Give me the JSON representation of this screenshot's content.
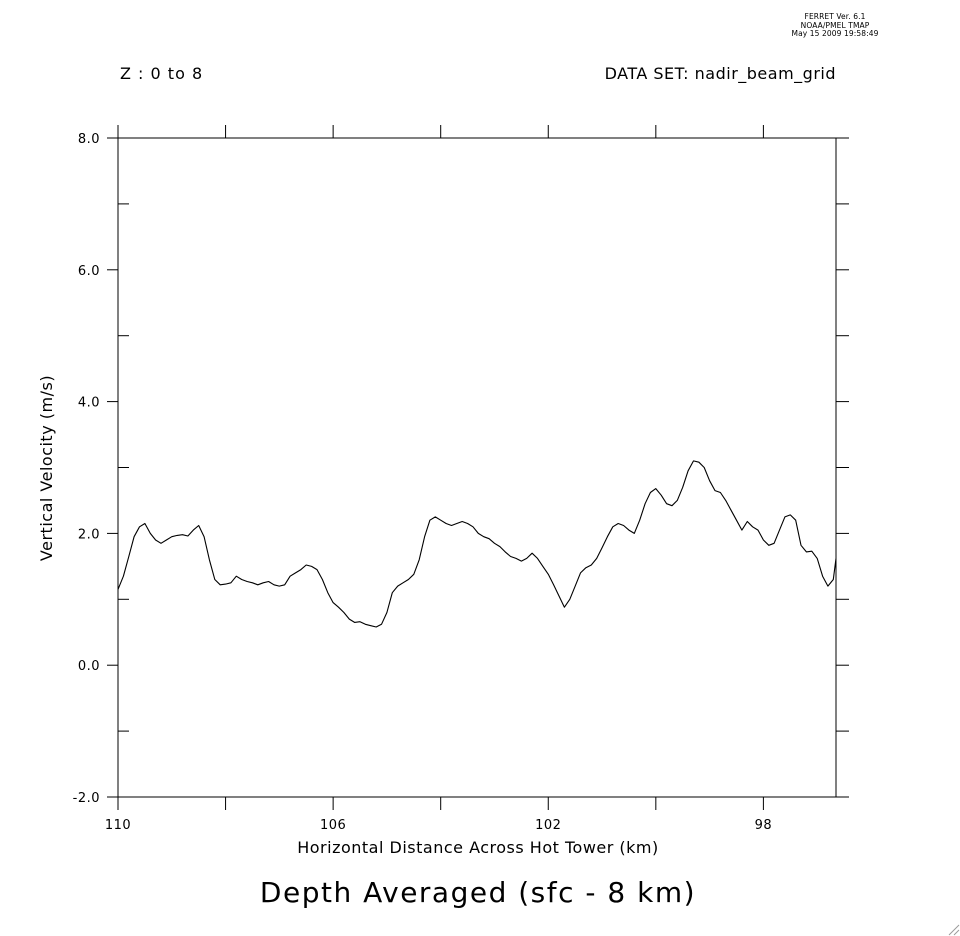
{
  "stamp": {
    "line1": "FERRET Ver. 6.1",
    "line2": "NOAA/PMEL TMAP",
    "line3": "May 15 2009 19:58:49"
  },
  "header": {
    "z_range": "Z : 0 to 8",
    "dataset": "DATA SET: nadir_beam_grid"
  },
  "chart_data": {
    "type": "line",
    "title": "Depth Averaged (sfc - 8 km)",
    "xlabel": "Horizontal Distance Across Hot Tower (km)",
    "ylabel": "Vertical Velocity (m/s)",
    "xlim": [
      110,
      96.65
    ],
    "ylim": [
      -2.0,
      8.0
    ],
    "x_reversed": true,
    "xticks": [
      110,
      106,
      102,
      98
    ],
    "xtick_labels": [
      "110",
      "106",
      "102",
      "98"
    ],
    "yticks": [
      -2.0,
      0.0,
      2.0,
      4.0,
      6.0,
      8.0
    ],
    "ytick_labels": [
      "-2.0",
      "0.0",
      "2.0",
      "4.0",
      "6.0",
      "8.0"
    ],
    "grid": false,
    "series": [
      {
        "x": [
          110.0,
          109.9,
          109.8,
          109.7,
          109.6,
          109.5,
          109.4,
          109.3,
          109.2,
          109.1,
          109.0,
          108.9,
          108.8,
          108.7,
          108.6,
          108.5,
          108.4,
          108.3,
          108.2,
          108.1,
          108.0,
          107.9,
          107.8,
          107.7,
          107.6,
          107.5,
          107.4,
          107.3,
          107.2,
          107.1,
          107.0,
          106.9,
          106.8,
          106.7,
          106.6,
          106.5,
          106.4,
          106.3,
          106.2,
          106.1,
          106.0,
          105.9,
          105.8,
          105.7,
          105.6,
          105.5,
          105.4,
          105.3,
          105.2,
          105.1,
          105.0,
          104.9,
          104.8,
          104.7,
          104.6,
          104.5,
          104.4,
          104.3,
          104.2,
          104.1,
          104.0,
          103.9,
          103.8,
          103.7,
          103.6,
          103.5,
          103.4,
          103.3,
          103.2,
          103.1,
          103.0,
          102.9,
          102.8,
          102.7,
          102.6,
          102.5,
          102.4,
          102.3,
          102.2,
          102.1,
          102.0,
          101.9,
          101.8,
          101.7,
          101.6,
          101.5,
          101.4,
          101.3,
          101.2,
          101.1,
          101.0,
          100.9,
          100.8,
          100.7,
          100.6,
          100.5,
          100.4,
          100.3,
          100.2,
          100.1,
          100.0,
          99.9,
          99.8,
          99.7,
          99.6,
          99.5,
          99.4,
          99.3,
          99.2,
          99.1,
          99.0,
          98.9,
          98.8,
          98.7,
          98.6,
          98.5,
          98.4,
          98.3,
          98.2,
          98.1,
          98.0,
          97.9,
          97.8,
          97.7,
          97.6,
          97.5,
          97.4,
          97.3,
          97.2,
          97.1,
          97.0,
          96.9,
          96.8,
          96.7,
          96.65
        ],
        "values": [
          1.15,
          1.35,
          1.65,
          1.95,
          2.1,
          2.15,
          2.0,
          1.9,
          1.85,
          1.9,
          1.95,
          1.97,
          1.98,
          1.96,
          2.05,
          2.12,
          1.95,
          1.6,
          1.3,
          1.22,
          1.23,
          1.25,
          1.35,
          1.3,
          1.27,
          1.25,
          1.22,
          1.25,
          1.27,
          1.22,
          1.2,
          1.22,
          1.35,
          1.4,
          1.45,
          1.52,
          1.5,
          1.45,
          1.3,
          1.1,
          0.95,
          0.88,
          0.8,
          0.7,
          0.65,
          0.66,
          0.62,
          0.6,
          0.58,
          0.62,
          0.8,
          1.1,
          1.2,
          1.25,
          1.3,
          1.38,
          1.6,
          1.95,
          2.2,
          2.25,
          2.2,
          2.15,
          2.12,
          2.15,
          2.18,
          2.15,
          2.1,
          2.0,
          1.95,
          1.92,
          1.85,
          1.8,
          1.72,
          1.65,
          1.62,
          1.58,
          1.62,
          1.7,
          1.62,
          1.5,
          1.38,
          1.22,
          1.05,
          0.88,
          1.0,
          1.2,
          1.4,
          1.48,
          1.52,
          1.62,
          1.78,
          1.95,
          2.1,
          2.15,
          2.12,
          2.05,
          2.0,
          2.2,
          2.45,
          2.62,
          2.68,
          2.58,
          2.45,
          2.42,
          2.5,
          2.7,
          2.95,
          3.1,
          3.08,
          3.0,
          2.8,
          2.65,
          2.62,
          2.5,
          2.35,
          2.2,
          2.05,
          2.18,
          2.1,
          2.05,
          1.9,
          1.82,
          1.85,
          2.05,
          2.25,
          2.28,
          2.2,
          1.82,
          1.72,
          1.73,
          1.62,
          1.35,
          1.2,
          1.3,
          1.62
        ]
      }
    ]
  }
}
